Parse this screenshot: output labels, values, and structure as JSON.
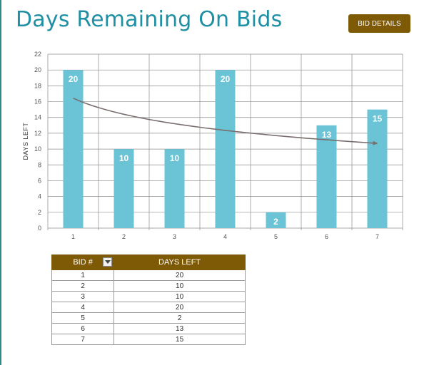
{
  "header": {
    "title": "Days Remaining On Bids",
    "button_label": "BID DETAILS"
  },
  "colors": {
    "bar": "#6ac4d6",
    "accent": "#7f5a06",
    "title": "#1f8fa4",
    "trendline": "#7a6e6e"
  },
  "chart_data": {
    "type": "bar",
    "categories": [
      "1",
      "2",
      "3",
      "4",
      "5",
      "6",
      "7"
    ],
    "values": [
      20,
      10,
      10,
      20,
      2,
      13,
      15
    ],
    "data_labels": [
      "20",
      "10",
      "10",
      "20",
      "2",
      "13",
      "15"
    ],
    "ylabel": "DAYS LEFT",
    "xlabel": "",
    "ylim": [
      0,
      22
    ],
    "yticks": [
      0,
      2,
      4,
      6,
      8,
      10,
      12,
      14,
      16,
      18,
      20,
      22
    ],
    "grid": true,
    "trendline": {
      "type": "logarithmic",
      "arrow": true
    }
  },
  "table": {
    "headers": [
      "BID #",
      "DAYS LEFT"
    ],
    "rows": [
      {
        "bid": "1",
        "days": "20"
      },
      {
        "bid": "2",
        "days": "10"
      },
      {
        "bid": "3",
        "days": "10"
      },
      {
        "bid": "4",
        "days": "20"
      },
      {
        "bid": "5",
        "days": "2"
      },
      {
        "bid": "6",
        "days": "13"
      },
      {
        "bid": "7",
        "days": "15"
      }
    ]
  }
}
